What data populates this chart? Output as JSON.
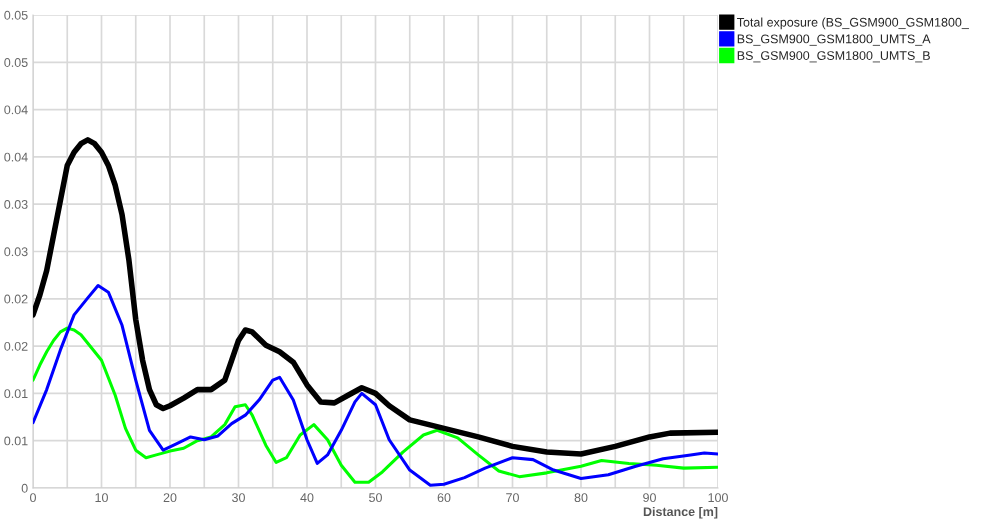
{
  "chart_data": {
    "type": "line",
    "xlabel": "Distance [m]",
    "xlim": [
      0,
      100
    ],
    "xticks": [
      0,
      {
        "value": 5,
        "label": null
      },
      10,
      {
        "value": 15,
        "label": null
      },
      20,
      {
        "value": 25,
        "label": null
      },
      30,
      {
        "value": 35,
        "label": null
      },
      40,
      {
        "value": 45,
        "label": null
      },
      50,
      {
        "value": 55,
        "label": null
      },
      60,
      {
        "value": 65,
        "label": null
      },
      70,
      {
        "value": 75,
        "label": null
      },
      80,
      {
        "value": 85,
        "label": null
      },
      90,
      {
        "value": 95,
        "label": null
      },
      100
    ],
    "ylim": [
      0,
      0.05
    ],
    "yticks": [
      0,
      {
        "value": 0.005,
        "label": "0.01"
      },
      {
        "value": 0.01,
        "label": "0.01"
      },
      {
        "value": 0.015,
        "label": "0.02"
      },
      {
        "value": 0.02,
        "label": "0.02"
      },
      {
        "value": 0.025,
        "label": "0.03"
      },
      {
        "value": 0.03,
        "label": "0.03"
      },
      {
        "value": 0.035,
        "label": "0.04"
      },
      {
        "value": 0.04,
        "label": "0.04"
      },
      {
        "value": 0.045,
        "label": "0.05"
      },
      {
        "value": 0.05,
        "label": "0.05"
      }
    ],
    "grid": true,
    "legend": "top right",
    "marker": "none",
    "line_style": "solid",
    "series": [
      {
        "name": "Total exposure (BS_GSM900_GSM1800_",
        "color": "#000000",
        "x": [
          0,
          1,
          2,
          3,
          4,
          5,
          6,
          7,
          8,
          9,
          10,
          11,
          12,
          13,
          14,
          15,
          16,
          17,
          18,
          19,
          20,
          22,
          24,
          26,
          28,
          29,
          30,
          31,
          32,
          34,
          36,
          38,
          40,
          42,
          44,
          46,
          48,
          50,
          52,
          55,
          60,
          65,
          70,
          75,
          80,
          85,
          90,
          93,
          100
        ],
        "values": [
          0.0183,
          0.0204,
          0.023,
          0.0267,
          0.0304,
          0.0341,
          0.0355,
          0.0364,
          0.0368,
          0.0364,
          0.0355,
          0.0341,
          0.032,
          0.0289,
          0.0241,
          0.0178,
          0.0135,
          0.0104,
          0.0088,
          0.0084,
          0.0087,
          0.0095,
          0.0104,
          0.0104,
          0.0114,
          0.0135,
          0.0156,
          0.0167,
          0.0165,
          0.0151,
          0.0144,
          0.0133,
          0.0109,
          0.0091,
          0.009,
          0.0098,
          0.0106,
          0.01,
          0.0087,
          0.0072,
          0.0063,
          0.0054,
          0.0044,
          0.0038,
          0.0036,
          0.0044,
          0.0054,
          0.0058,
          0.0059
        ]
      },
      {
        "name": "BS_GSM900_GSM1800_UMTS_A",
        "color": "#0000ff",
        "x": [
          0,
          2,
          4,
          6,
          8,
          9.5,
          11,
          13,
          15,
          17,
          19,
          21,
          23,
          25,
          27,
          29,
          31,
          33,
          35,
          36,
          38,
          40,
          41.5,
          43,
          45,
          47,
          48,
          50,
          52,
          55,
          58,
          60,
          63,
          66,
          70,
          73,
          76,
          80,
          84,
          88,
          92,
          96,
          98,
          100
        ],
        "values": [
          0.0069,
          0.0104,
          0.0146,
          0.0183,
          0.0201,
          0.0214,
          0.0207,
          0.0172,
          0.0114,
          0.0061,
          0.004,
          0.0047,
          0.0054,
          0.0051,
          0.0055,
          0.0068,
          0.0077,
          0.0093,
          0.0114,
          0.0117,
          0.0093,
          0.0051,
          0.0026,
          0.0035,
          0.0061,
          0.0091,
          0.01,
          0.0088,
          0.0051,
          0.0019,
          0.0003,
          0.0004,
          0.0011,
          0.0021,
          0.0032,
          0.003,
          0.0019,
          0.001,
          0.0014,
          0.0023,
          0.0031,
          0.0035,
          0.0037,
          0.0036
        ]
      },
      {
        "name": "BS_GSM900_GSM1800_UMTS_B",
        "color": "#00ff00",
        "x": [
          0,
          1,
          2,
          3,
          4,
          5,
          6,
          7,
          8,
          10,
          12,
          13.5,
          15,
          16.5,
          18,
          20,
          22,
          24,
          26,
          28,
          29.5,
          31,
          32,
          34,
          35.5,
          37,
          39,
          41,
          43,
          45,
          47,
          49,
          51,
          54,
          57,
          59,
          62,
          65,
          68,
          71,
          75,
          80,
          83,
          87,
          91,
          95,
          100
        ],
        "values": [
          0.0114,
          0.013,
          0.0144,
          0.0156,
          0.0165,
          0.0169,
          0.0167,
          0.0162,
          0.0153,
          0.0135,
          0.0098,
          0.0063,
          0.004,
          0.0032,
          0.0035,
          0.0039,
          0.0042,
          0.005,
          0.0054,
          0.0067,
          0.0086,
          0.0088,
          0.0077,
          0.0045,
          0.0027,
          0.0032,
          0.0056,
          0.0067,
          0.0051,
          0.0024,
          0.0006,
          0.0006,
          0.0017,
          0.0038,
          0.0056,
          0.0061,
          0.0053,
          0.0035,
          0.0018,
          0.0012,
          0.0016,
          0.0023,
          0.0029,
          0.0026,
          0.0024,
          0.0021,
          0.0022
        ]
      }
    ]
  }
}
